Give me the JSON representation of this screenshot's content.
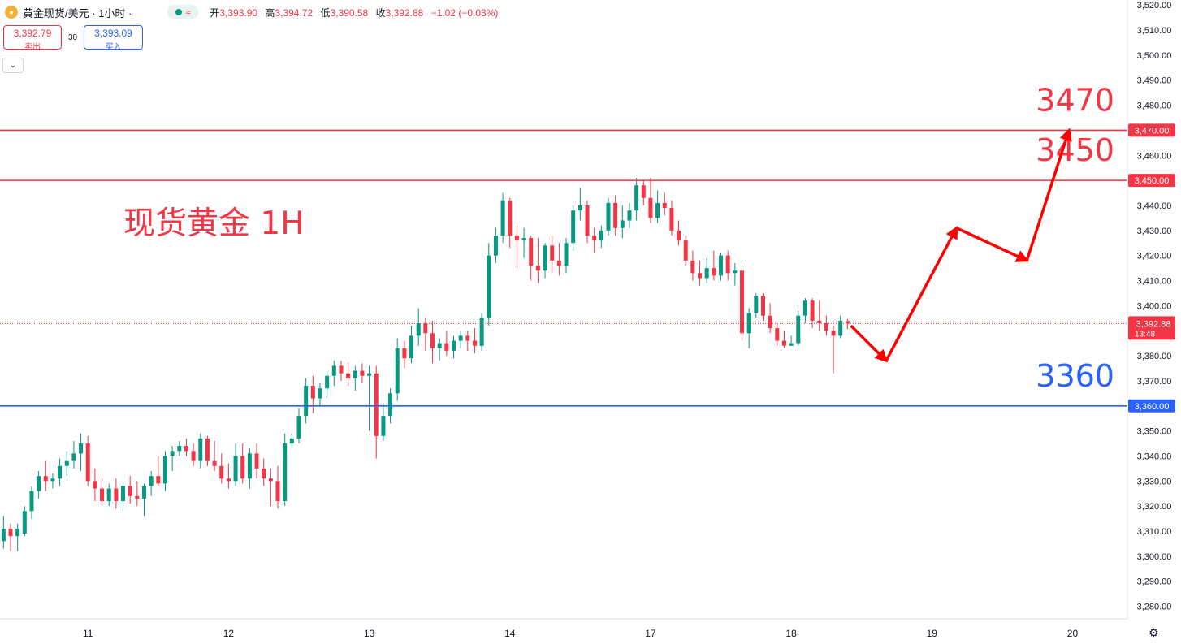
{
  "header": {
    "title": "黄金现货/美元 · 1小时 ·",
    "ohlc": [
      {
        "key": "开",
        "value": "3,393.90"
      },
      {
        "key": "高",
        "value": "3,394.72"
      },
      {
        "key": "低",
        "value": "3,390.58"
      },
      {
        "key": "收",
        "value": "3,392.88"
      }
    ],
    "change": "−1.02 (−0.03%)",
    "status_icon": "wave-icon"
  },
  "trade": {
    "sell_price": "3,392.79",
    "sell_label": "卖出",
    "spread": "30",
    "buy_price": "3,393.09",
    "buy_label": "买入"
  },
  "colors": {
    "up": "#089981",
    "down": "#f23645",
    "support": "#2962ff",
    "resistance": "#f23645",
    "arrow": "#ff0000"
  },
  "chart_data": {
    "type": "candlestick",
    "title": "现货黄金 1H",
    "y_range": [
      3275,
      3522
    ],
    "y_ticks": [
      "3,280.00",
      "3,290.00",
      "3,300.00",
      "3,310.00",
      "3,320.00",
      "3,330.00",
      "3,340.00",
      "3,350.00",
      "3,360.00",
      "3,370.00",
      "3,380.00",
      "3,390.00",
      "3,400.00",
      "3,410.00",
      "3,420.00",
      "3,430.00",
      "3,440.00",
      "3,450.00",
      "3,460.00",
      "3,470.00",
      "3,480.00",
      "3,490.00",
      "3,500.00",
      "3,510.00",
      "3,520.00"
    ],
    "x_ticks": [
      {
        "label": "11",
        "index": 13
      },
      {
        "label": "12",
        "index": 33
      },
      {
        "label": "13",
        "index": 53
      },
      {
        "label": "14",
        "index": 73
      },
      {
        "label": "17",
        "index": 93
      },
      {
        "label": "18",
        "index": 113
      },
      {
        "label": "19",
        "index": 133
      },
      {
        "label": "20",
        "index": 153
      }
    ],
    "x_range": [
      0.5,
      160.8
    ],
    "candles": [
      {
        "o": 3306,
        "h": 3316,
        "l": 3303,
        "c": 3311
      },
      {
        "o": 3311,
        "h": 3313,
        "l": 3302,
        "c": 3308
      },
      {
        "o": 3308,
        "h": 3313,
        "l": 3302,
        "c": 3311
      },
      {
        "o": 3309,
        "h": 3320,
        "l": 3308,
        "c": 3318
      },
      {
        "o": 3318,
        "h": 3328,
        "l": 3315,
        "c": 3326
      },
      {
        "o": 3326,
        "h": 3334,
        "l": 3323,
        "c": 3332
      },
      {
        "o": 3332,
        "h": 3338,
        "l": 3326,
        "c": 3330
      },
      {
        "o": 3330,
        "h": 3333,
        "l": 3327,
        "c": 3331
      },
      {
        "o": 3331,
        "h": 3339,
        "l": 3328,
        "c": 3336
      },
      {
        "o": 3336,
        "h": 3342,
        "l": 3332,
        "c": 3338
      },
      {
        "o": 3338,
        "h": 3346,
        "l": 3335,
        "c": 3341
      },
      {
        "o": 3341,
        "h": 3349,
        "l": 3334,
        "c": 3345
      },
      {
        "o": 3345,
        "h": 3348,
        "l": 3328,
        "c": 3330
      },
      {
        "o": 3330,
        "h": 3335,
        "l": 3322,
        "c": 3327
      },
      {
        "o": 3327,
        "h": 3331,
        "l": 3320,
        "c": 3322
      },
      {
        "o": 3322,
        "h": 3329,
        "l": 3320,
        "c": 3327
      },
      {
        "o": 3327,
        "h": 3331,
        "l": 3319,
        "c": 3322
      },
      {
        "o": 3322,
        "h": 3330,
        "l": 3318,
        "c": 3328
      },
      {
        "o": 3328,
        "h": 3332,
        "l": 3321,
        "c": 3324
      },
      {
        "o": 3324,
        "h": 3330,
        "l": 3320,
        "c": 3323
      },
      {
        "o": 3323,
        "h": 3329,
        "l": 3316,
        "c": 3328
      },
      {
        "o": 3328,
        "h": 3334,
        "l": 3324,
        "c": 3332
      },
      {
        "o": 3332,
        "h": 3340,
        "l": 3328,
        "c": 3329
      },
      {
        "o": 3329,
        "h": 3342,
        "l": 3326,
        "c": 3340
      },
      {
        "o": 3340,
        "h": 3344,
        "l": 3334,
        "c": 3342
      },
      {
        "o": 3342,
        "h": 3346,
        "l": 3340,
        "c": 3344
      },
      {
        "o": 3344,
        "h": 3347,
        "l": 3340,
        "c": 3342
      },
      {
        "o": 3342,
        "h": 3345,
        "l": 3336,
        "c": 3338
      },
      {
        "o": 3338,
        "h": 3349,
        "l": 3335,
        "c": 3347
      },
      {
        "o": 3347,
        "h": 3348,
        "l": 3336,
        "c": 3338
      },
      {
        "o": 3338,
        "h": 3346,
        "l": 3334,
        "c": 3336
      },
      {
        "o": 3336,
        "h": 3341,
        "l": 3329,
        "c": 3331
      },
      {
        "o": 3331,
        "h": 3337,
        "l": 3327,
        "c": 3330
      },
      {
        "o": 3330,
        "h": 3345,
        "l": 3328,
        "c": 3340
      },
      {
        "o": 3340,
        "h": 3345,
        "l": 3329,
        "c": 3331
      },
      {
        "o": 3331,
        "h": 3343,
        "l": 3327,
        "c": 3341
      },
      {
        "o": 3341,
        "h": 3345,
        "l": 3331,
        "c": 3335
      },
      {
        "o": 3335,
        "h": 3339,
        "l": 3328,
        "c": 3331
      },
      {
        "o": 3331,
        "h": 3335,
        "l": 3320,
        "c": 3330
      },
      {
        "o": 3330,
        "h": 3336,
        "l": 3319,
        "c": 3322
      },
      {
        "o": 3322,
        "h": 3349,
        "l": 3320,
        "c": 3345
      },
      {
        "o": 3345,
        "h": 3349,
        "l": 3343,
        "c": 3347
      },
      {
        "o": 3347,
        "h": 3359,
        "l": 3345,
        "c": 3356
      },
      {
        "o": 3356,
        "h": 3371,
        "l": 3353,
        "c": 3368
      },
      {
        "o": 3368,
        "h": 3372,
        "l": 3357,
        "c": 3363
      },
      {
        "o": 3363,
        "h": 3369,
        "l": 3360,
        "c": 3367
      },
      {
        "o": 3367,
        "h": 3374,
        "l": 3363,
        "c": 3372
      },
      {
        "o": 3372,
        "h": 3378,
        "l": 3368,
        "c": 3376
      },
      {
        "o": 3376,
        "h": 3378,
        "l": 3370,
        "c": 3373
      },
      {
        "o": 3373,
        "h": 3377,
        "l": 3368,
        "c": 3371
      },
      {
        "o": 3371,
        "h": 3376,
        "l": 3366,
        "c": 3374
      },
      {
        "o": 3374,
        "h": 3377,
        "l": 3369,
        "c": 3372
      },
      {
        "o": 3372,
        "h": 3376,
        "l": 3350,
        "c": 3373
      },
      {
        "o": 3373,
        "h": 3376,
        "l": 3339,
        "c": 3348
      },
      {
        "o": 3348,
        "h": 3361,
        "l": 3346,
        "c": 3356
      },
      {
        "o": 3356,
        "h": 3367,
        "l": 3353,
        "c": 3365
      },
      {
        "o": 3365,
        "h": 3387,
        "l": 3362,
        "c": 3383
      },
      {
        "o": 3383,
        "h": 3386,
        "l": 3375,
        "c": 3379
      },
      {
        "o": 3379,
        "h": 3392,
        "l": 3377,
        "c": 3388
      },
      {
        "o": 3388,
        "h": 3399,
        "l": 3384,
        "c": 3393
      },
      {
        "o": 3393,
        "h": 3395,
        "l": 3382,
        "c": 3389
      },
      {
        "o": 3389,
        "h": 3394,
        "l": 3377,
        "c": 3383
      },
      {
        "o": 3383,
        "h": 3387,
        "l": 3378,
        "c": 3385
      },
      {
        "o": 3385,
        "h": 3390,
        "l": 3380,
        "c": 3382
      },
      {
        "o": 3382,
        "h": 3388,
        "l": 3379,
        "c": 3386
      },
      {
        "o": 3386,
        "h": 3390,
        "l": 3383,
        "c": 3388
      },
      {
        "o": 3388,
        "h": 3390,
        "l": 3382,
        "c": 3386
      },
      {
        "o": 3386,
        "h": 3391,
        "l": 3381,
        "c": 3384
      },
      {
        "o": 3384,
        "h": 3397,
        "l": 3382,
        "c": 3395
      },
      {
        "o": 3395,
        "h": 3425,
        "l": 3392,
        "c": 3420
      },
      {
        "o": 3420,
        "h": 3431,
        "l": 3417,
        "c": 3428
      },
      {
        "o": 3428,
        "h": 3445,
        "l": 3425,
        "c": 3442
      },
      {
        "o": 3442,
        "h": 3443,
        "l": 3423,
        "c": 3428
      },
      {
        "o": 3428,
        "h": 3432,
        "l": 3415,
        "c": 3426
      },
      {
        "o": 3426,
        "h": 3431,
        "l": 3419,
        "c": 3427
      },
      {
        "o": 3427,
        "h": 3428,
        "l": 3410,
        "c": 3416
      },
      {
        "o": 3416,
        "h": 3427,
        "l": 3409,
        "c": 3414
      },
      {
        "o": 3414,
        "h": 3425,
        "l": 3411,
        "c": 3424
      },
      {
        "o": 3424,
        "h": 3428,
        "l": 3413,
        "c": 3418
      },
      {
        "o": 3418,
        "h": 3425,
        "l": 3412,
        "c": 3416
      },
      {
        "o": 3416,
        "h": 3427,
        "l": 3413,
        "c": 3425
      },
      {
        "o": 3425,
        "h": 3440,
        "l": 3422,
        "c": 3438
      },
      {
        "o": 3438,
        "h": 3447,
        "l": 3434,
        "c": 3440
      },
      {
        "o": 3440,
        "h": 3442,
        "l": 3425,
        "c": 3428
      },
      {
        "o": 3428,
        "h": 3431,
        "l": 3421,
        "c": 3426
      },
      {
        "o": 3426,
        "h": 3432,
        "l": 3423,
        "c": 3430
      },
      {
        "o": 3430,
        "h": 3443,
        "l": 3428,
        "c": 3441
      },
      {
        "o": 3441,
        "h": 3444,
        "l": 3428,
        "c": 3431
      },
      {
        "o": 3431,
        "h": 3440,
        "l": 3427,
        "c": 3434
      },
      {
        "o": 3434,
        "h": 3441,
        "l": 3431,
        "c": 3438
      },
      {
        "o": 3438,
        "h": 3451,
        "l": 3434,
        "c": 3448
      },
      {
        "o": 3448,
        "h": 3450,
        "l": 3440,
        "c": 3443
      },
      {
        "o": 3443,
        "h": 3451,
        "l": 3433,
        "c": 3435
      },
      {
        "o": 3435,
        "h": 3446,
        "l": 3433,
        "c": 3441
      },
      {
        "o": 3441,
        "h": 3445,
        "l": 3436,
        "c": 3439
      },
      {
        "o": 3439,
        "h": 3442,
        "l": 3428,
        "c": 3430
      },
      {
        "o": 3430,
        "h": 3434,
        "l": 3424,
        "c": 3426
      },
      {
        "o": 3426,
        "h": 3428,
        "l": 3416,
        "c": 3418
      },
      {
        "o": 3418,
        "h": 3422,
        "l": 3410,
        "c": 3413
      },
      {
        "o": 3413,
        "h": 3418,
        "l": 3408,
        "c": 3411
      },
      {
        "o": 3411,
        "h": 3419,
        "l": 3409,
        "c": 3415
      },
      {
        "o": 3415,
        "h": 3422,
        "l": 3410,
        "c": 3412
      },
      {
        "o": 3412,
        "h": 3421,
        "l": 3410,
        "c": 3420
      },
      {
        "o": 3420,
        "h": 3422,
        "l": 3410,
        "c": 3413
      },
      {
        "o": 3413,
        "h": 3417,
        "l": 3408,
        "c": 3414
      },
      {
        "o": 3414,
        "h": 3416,
        "l": 3386,
        "c": 3389
      },
      {
        "o": 3389,
        "h": 3399,
        "l": 3383,
        "c": 3397
      },
      {
        "o": 3397,
        "h": 3405,
        "l": 3395,
        "c": 3404
      },
      {
        "o": 3404,
        "h": 3405,
        "l": 3394,
        "c": 3396
      },
      {
        "o": 3396,
        "h": 3401,
        "l": 3389,
        "c": 3391
      },
      {
        "o": 3391,
        "h": 3393,
        "l": 3384,
        "c": 3386
      },
      {
        "o": 3386,
        "h": 3390,
        "l": 3383,
        "c": 3384
      },
      {
        "o": 3384,
        "h": 3388,
        "l": 3384,
        "c": 3385
      },
      {
        "o": 3385,
        "h": 3398,
        "l": 3384,
        "c": 3396
      },
      {
        "o": 3396,
        "h": 3403,
        "l": 3393,
        "c": 3402
      },
      {
        "o": 3402,
        "h": 3403,
        "l": 3391,
        "c": 3394
      },
      {
        "o": 3394,
        "h": 3402,
        "l": 3390,
        "c": 3393
      },
      {
        "o": 3393,
        "h": 3396,
        "l": 3388,
        "c": 3390
      },
      {
        "o": 3390,
        "h": 3392,
        "l": 3373,
        "c": 3388
      },
      {
        "o": 3388,
        "h": 3396,
        "l": 3387,
        "c": 3394
      },
      {
        "o": 3393.9,
        "h": 3394.72,
        "l": 3390.58,
        "c": 3392.88
      }
    ],
    "levels": [
      {
        "price": 3470,
        "axis_label": "3,470.00",
        "annotation": "3470",
        "color": "#f23645"
      },
      {
        "price": 3450,
        "axis_label": "3,450.00",
        "annotation": "3450",
        "color": "#f23645"
      },
      {
        "price": 3360,
        "axis_label": "3,360.00",
        "annotation": "3360",
        "color": "#2962ff"
      }
    ],
    "last_price": {
      "label": "3,392.88",
      "countdown": "13:48"
    },
    "forecast_path": [
      {
        "i": 121.5,
        "price": 3392
      },
      {
        "i": 126.5,
        "price": 3378
      },
      {
        "i": 136.5,
        "price": 3431
      },
      {
        "i": 146.5,
        "price": 3418
      },
      {
        "i": 152.5,
        "price": 3470
      }
    ]
  }
}
